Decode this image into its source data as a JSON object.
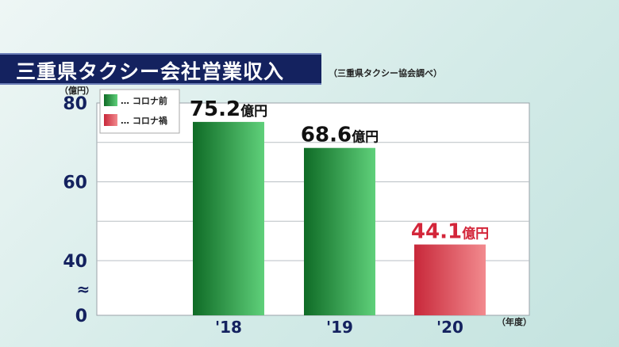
{
  "title": "三重県タクシー会社営業収入",
  "source": "（三重県タクシー協会調べ）",
  "chart_data": {
    "type": "bar",
    "title": "三重県タクシー会社営業収入",
    "y_unit_label": "（億円）",
    "x_unit_label": "（年度）",
    "categories": [
      "'18",
      "'19",
      "'20"
    ],
    "values": [
      75.2,
      68.6,
      44.1
    ],
    "value_labels": [
      "75.2",
      "68.6",
      "44.1"
    ],
    "value_suffix": "億円",
    "y_ticks": [
      "0",
      "40",
      "60",
      "80"
    ],
    "axis_break": "≈",
    "ylim_display": [
      40,
      80
    ],
    "grid": true,
    "legend": {
      "position": "top-left",
      "items": [
        {
          "label": "… コロナ前",
          "color": "#2e9a45"
        },
        {
          "label": "… コロナ禍",
          "color": "#e0555a"
        }
      ]
    },
    "bar_groups": [
      "pre",
      "pre",
      "during"
    ],
    "colors": {
      "pre_dark": "#0f6b26",
      "pre_light": "#5fd07a",
      "during_dark": "#c8283a",
      "during_light": "#f28a8e",
      "during_label": "#d3263a"
    }
  }
}
